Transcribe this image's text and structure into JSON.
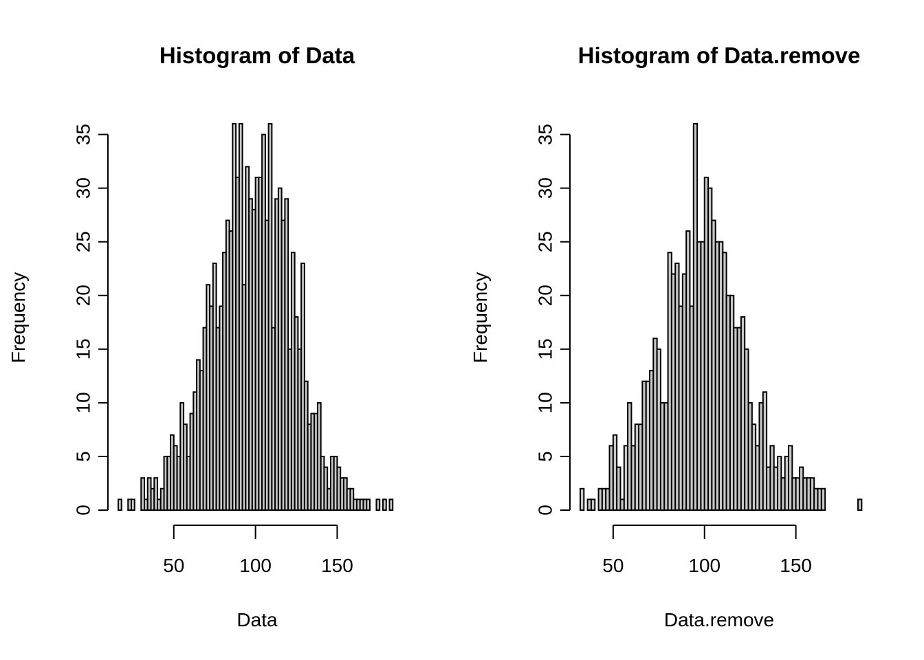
{
  "chart_data": [
    {
      "type": "bar",
      "title": "Histogram of Data",
      "xlabel": "Data",
      "ylabel": "Frequency",
      "bin_width": 2,
      "bin_start": 16,
      "xlim": [
        16,
        186
      ],
      "ylim": [
        0,
        36
      ],
      "x_ticks": [
        50,
        100,
        150
      ],
      "y_ticks": [
        0,
        5,
        10,
        15,
        20,
        25,
        30,
        35
      ],
      "values": [
        1,
        0,
        0,
        1,
        1,
        0,
        0,
        3,
        1,
        3,
        2,
        3,
        1,
        2,
        5,
        5,
        7,
        6,
        5,
        10,
        8,
        5,
        9,
        11,
        14,
        13,
        17,
        21,
        19,
        23,
        17,
        19,
        24,
        27,
        26,
        36,
        31,
        36,
        21,
        32,
        29,
        28,
        31,
        31,
        35,
        27,
        36,
        17,
        29,
        30,
        27,
        29,
        15,
        24,
        18,
        15,
        23,
        12,
        8,
        9,
        9,
        10,
        5,
        4,
        2,
        5,
        5,
        4,
        3,
        3,
        2,
        2,
        1,
        1,
        1,
        1,
        1,
        0,
        0,
        1,
        0,
        1,
        0,
        1,
        0
      ]
    },
    {
      "type": "bar",
      "title": "Histogram of Data.remove",
      "xlabel": "Data.remove",
      "ylabel": "Frequency",
      "bin_width": 2,
      "bin_start": 32,
      "xlim": [
        32,
        184
      ],
      "ylim": [
        0,
        36
      ],
      "x_ticks": [
        50,
        100,
        150
      ],
      "y_ticks": [
        0,
        5,
        10,
        15,
        20,
        25,
        30,
        35
      ],
      "values": [
        2,
        0,
        1,
        1,
        0,
        2,
        2,
        2,
        6,
        7,
        4,
        1,
        6,
        10,
        6,
        8,
        8,
        12,
        12,
        13,
        16,
        15,
        10,
        10,
        24,
        22,
        23,
        19,
        22,
        26,
        19,
        36,
        25,
        25,
        31,
        30,
        27,
        25,
        25,
        24,
        20,
        20,
        17,
        17,
        18,
        15,
        10,
        8,
        6,
        10,
        11,
        4,
        6,
        4,
        5,
        3,
        5,
        6,
        3,
        3,
        4,
        3,
        3,
        3,
        2,
        2,
        2,
        0,
        0,
        0,
        0,
        0,
        0,
        0,
        0,
        0,
        1
      ]
    }
  ]
}
